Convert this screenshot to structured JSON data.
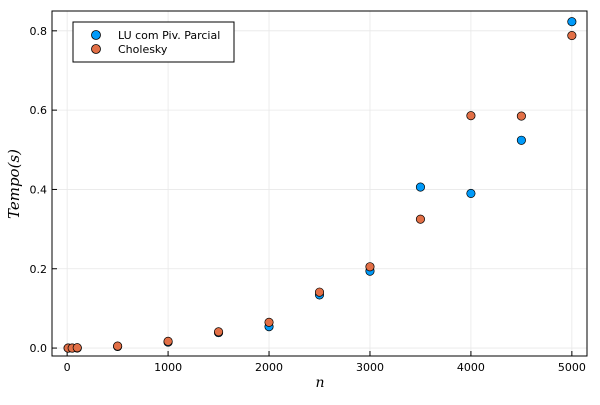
{
  "chart_data": {
    "type": "scatter",
    "xlabel": "n",
    "ylabel": "Tempo(s)",
    "xlim": [
      -150,
      5150
    ],
    "ylim": [
      -0.02,
      0.85
    ],
    "xticks": [
      0,
      1000,
      2000,
      3000,
      4000,
      5000
    ],
    "yticks": [
      0.0,
      0.2,
      0.4,
      0.6,
      0.8
    ],
    "grid": true,
    "legend_position": "top-left",
    "series": [
      {
        "name": "LU com Piv. Parcial",
        "color": "#009af9",
        "x": [
          10,
          50,
          100,
          500,
          1000,
          1500,
          2000,
          2500,
          3000,
          3500,
          4000,
          4500,
          5000
        ],
        "y": [
          0.0,
          0.0,
          0.0,
          0.004,
          0.015,
          0.039,
          0.054,
          0.134,
          0.194,
          0.406,
          0.39,
          0.524,
          0.823
        ]
      },
      {
        "name": "Cholesky",
        "color": "#e26f46",
        "x": [
          10,
          50,
          100,
          500,
          1000,
          1500,
          2000,
          2500,
          3000,
          3500,
          4000,
          4500,
          5000
        ],
        "y": [
          0.0,
          0.0,
          0.001,
          0.005,
          0.017,
          0.041,
          0.065,
          0.141,
          0.205,
          0.325,
          0.586,
          0.585,
          0.788
        ]
      }
    ]
  }
}
